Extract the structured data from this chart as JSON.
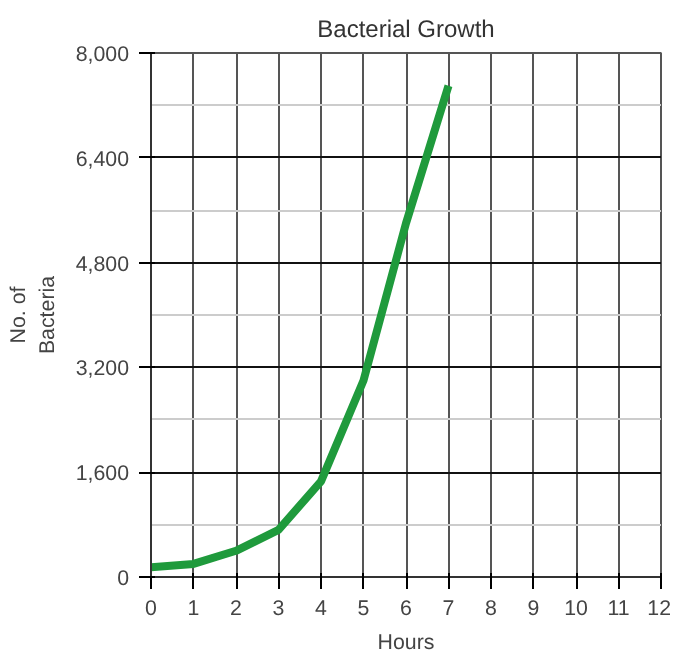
{
  "chart_data": {
    "type": "line",
    "title": "Bacterial Growth",
    "xlabel": "Hours",
    "ylabel": "No. of\nBacteria",
    "x": [
      0,
      1,
      2,
      3,
      4,
      5,
      6,
      7
    ],
    "series": [
      {
        "color": "#1f9a3c",
        "values": [
          150,
          200,
          400,
          720,
          1460,
          3000,
          5400,
          7500
        ]
      }
    ],
    "xlim": [
      0,
      12
    ],
    "xticks": [
      0,
      1,
      2,
      3,
      4,
      5,
      6,
      7,
      8,
      9,
      10,
      11,
      12
    ],
    "ylim": [
      0,
      8000
    ],
    "yticks": [
      {
        "value": 0,
        "label": "0"
      },
      {
        "value": 1600,
        "label": "1,600"
      },
      {
        "value": 3200,
        "label": "3,200"
      },
      {
        "value": 4800,
        "label": "4,800"
      },
      {
        "value": 6400,
        "label": "6,400"
      },
      {
        "value": 8000,
        "label": "8,000"
      }
    ],
    "grid": true,
    "line_style": "solid"
  }
}
